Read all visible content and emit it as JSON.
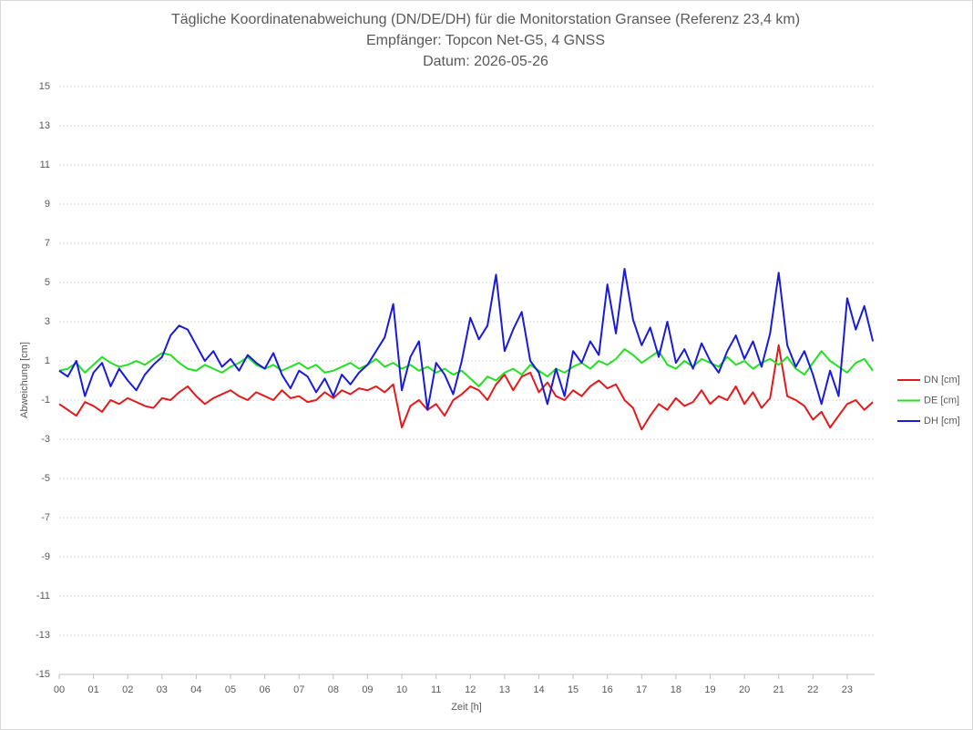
{
  "chart_data": {
    "type": "line",
    "title": "Tägliche Koordinatenabweichung (DN/DE/DH) für die Monitorstation Gransee (Referenz 23,4 km)",
    "subtitle": "Empfänger: Topcon Net-G5, 4 GNSS",
    "date": "Datum: 2026-05-26",
    "x_label": "Zeit [h]",
    "y_label": "Abweichung [cm]",
    "x": [
      0,
      0.25,
      0.5,
      0.75,
      1,
      1.25,
      1.5,
      1.75,
      2,
      2.25,
      2.5,
      2.75,
      3,
      3.25,
      3.5,
      3.75,
      4,
      4.25,
      4.5,
      4.75,
      5,
      5.25,
      5.5,
      5.75,
      6,
      6.25,
      6.5,
      6.75,
      7,
      7.25,
      7.5,
      7.75,
      8,
      8.25,
      8.5,
      8.75,
      9,
      9.25,
      9.5,
      9.75,
      10,
      10.25,
      10.5,
      10.75,
      11,
      11.25,
      11.5,
      11.75,
      12,
      12.25,
      12.5,
      12.75,
      13,
      13.25,
      13.5,
      13.75,
      14,
      14.25,
      14.5,
      14.75,
      15,
      15.25,
      15.5,
      15.75,
      16,
      16.25,
      16.5,
      16.75,
      17,
      17.25,
      17.5,
      17.75,
      18,
      18.25,
      18.5,
      18.75,
      19,
      19.25,
      19.5,
      19.75,
      20,
      20.25,
      20.5,
      20.75,
      21,
      21.25,
      21.5,
      21.75,
      22,
      22.25,
      22.5,
      22.75,
      23,
      23.25,
      23.5,
      23.75
    ],
    "series": [
      {
        "name": "DN [cm]",
        "color": "#e31a1c",
        "values": [
          -1.2,
          -1.5,
          -1.8,
          -1.1,
          -1.3,
          -1.6,
          -1.0,
          -1.2,
          -0.9,
          -1.1,
          -1.3,
          -1.4,
          -0.9,
          -1.0,
          -0.6,
          -0.3,
          -0.8,
          -1.2,
          -0.9,
          -0.7,
          -0.5,
          -0.8,
          -1.0,
          -0.6,
          -0.8,
          -1.0,
          -0.5,
          -0.9,
          -0.8,
          -1.1,
          -1.0,
          -0.6,
          -0.9,
          -0.5,
          -0.7,
          -0.4,
          -0.5,
          -0.3,
          -0.6,
          -0.2,
          -2.4,
          -1.3,
          -1.0,
          -1.5,
          -1.2,
          -1.8,
          -1.0,
          -0.7,
          -0.3,
          -0.5,
          -1.0,
          -0.2,
          0.3,
          -0.5,
          0.2,
          0.4,
          -0.6,
          -0.1,
          -0.8,
          -1.0,
          -0.5,
          -0.8,
          -0.3,
          0.0,
          -0.4,
          -0.2,
          -1.0,
          -1.4,
          -2.5,
          -1.8,
          -1.2,
          -1.5,
          -0.9,
          -1.3,
          -1.1,
          -0.5,
          -1.2,
          -0.8,
          -1.0,
          -0.3,
          -1.2,
          -0.6,
          -1.4,
          -0.9,
          1.8,
          -0.8,
          -1.0,
          -1.3,
          -2.0,
          -1.6,
          -2.4,
          -1.8,
          -1.2,
          -1.0,
          -1.5,
          -1.1
        ]
      },
      {
        "name": "DE [cm]",
        "color": "#22e022",
        "values": [
          0.5,
          0.6,
          0.9,
          0.4,
          0.8,
          1.2,
          0.9,
          0.7,
          0.8,
          1.0,
          0.8,
          1.1,
          1.4,
          1.3,
          0.9,
          0.6,
          0.5,
          0.8,
          0.6,
          0.4,
          0.7,
          0.9,
          1.2,
          0.8,
          0.6,
          0.8,
          0.5,
          0.7,
          0.9,
          0.6,
          0.8,
          0.4,
          0.5,
          0.7,
          0.9,
          0.6,
          0.8,
          1.1,
          0.7,
          0.9,
          0.6,
          0.8,
          0.5,
          0.7,
          0.4,
          0.6,
          0.3,
          0.5,
          0.1,
          -0.3,
          0.2,
          0.0,
          0.4,
          0.6,
          0.3,
          0.8,
          0.5,
          0.2,
          0.6,
          0.4,
          0.7,
          0.9,
          0.6,
          1.0,
          0.8,
          1.1,
          1.6,
          1.3,
          0.9,
          1.2,
          1.5,
          0.8,
          0.6,
          1.0,
          0.7,
          1.1,
          0.9,
          0.7,
          1.2,
          0.8,
          1.0,
          0.6,
          0.9,
          1.1,
          0.8,
          1.2,
          0.6,
          0.3,
          0.9,
          1.5,
          1.0,
          0.7,
          0.4,
          0.9,
          1.1,
          0.5
        ]
      },
      {
        "name": "DH [cm]",
        "color": "#1a1adb",
        "values": [
          0.5,
          0.2,
          1.0,
          -0.8,
          0.4,
          0.9,
          -0.3,
          0.6,
          0.0,
          -0.5,
          0.3,
          0.8,
          1.2,
          2.3,
          2.8,
          2.6,
          1.8,
          1.0,
          1.5,
          0.7,
          1.1,
          0.5,
          1.3,
          0.9,
          0.6,
          1.4,
          0.3,
          -0.4,
          0.5,
          0.2,
          -0.6,
          0.1,
          -0.8,
          0.3,
          -0.2,
          0.4,
          0.8,
          1.5,
          2.2,
          3.9,
          -0.5,
          1.2,
          2.0,
          -1.5,
          0.9,
          0.3,
          -0.7,
          1.0,
          3.2,
          2.1,
          2.8,
          5.4,
          1.5,
          2.6,
          3.5,
          1.0,
          0.4,
          -1.2,
          0.6,
          -0.8,
          1.5,
          0.9,
          2.0,
          1.3,
          4.9,
          2.4,
          5.7,
          3.1,
          1.8,
          2.7,
          1.2,
          3.0,
          0.9,
          1.6,
          0.6,
          1.9,
          1.0,
          0.4,
          1.5,
          2.3,
          1.1,
          2.0,
          0.7,
          2.4,
          5.5,
          1.8,
          0.7,
          1.5,
          0.3,
          -1.2,
          0.5,
          -0.8,
          4.2,
          2.6,
          3.8,
          2.0
        ]
      }
    ],
    "xlim": [
      0,
      23.8
    ],
    "xticks": [
      {
        "value": 0,
        "label": "00"
      },
      {
        "value": 1,
        "label": "01"
      },
      {
        "value": 2,
        "label": "02"
      },
      {
        "value": 3,
        "label": "03"
      },
      {
        "value": 4,
        "label": "04"
      },
      {
        "value": 5,
        "label": "05"
      },
      {
        "value": 6,
        "label": "06"
      },
      {
        "value": 7,
        "label": "07"
      },
      {
        "value": 8,
        "label": "08"
      },
      {
        "value": 9,
        "label": "09"
      },
      {
        "value": 10,
        "label": "10"
      },
      {
        "value": 11,
        "label": "11"
      },
      {
        "value": 12,
        "label": "12"
      },
      {
        "value": 13,
        "label": "13"
      },
      {
        "value": 14,
        "label": "14"
      },
      {
        "value": 15,
        "label": "15"
      },
      {
        "value": 16,
        "label": "16"
      },
      {
        "value": 17,
        "label": "17"
      },
      {
        "value": 18,
        "label": "18"
      },
      {
        "value": 19,
        "label": "19"
      },
      {
        "value": 20,
        "label": "20"
      },
      {
        "value": 21,
        "label": "21"
      },
      {
        "value": 22,
        "label": "22"
      },
      {
        "value": 23,
        "label": "23"
      }
    ],
    "ylim": [
      -15,
      15
    ],
    "yticks": [
      -15,
      -13,
      -11,
      -9,
      -7,
      -5,
      -3,
      -1,
      1,
      3,
      5,
      7,
      9,
      11,
      13,
      15
    ],
    "grid": true,
    "legend": "right"
  }
}
